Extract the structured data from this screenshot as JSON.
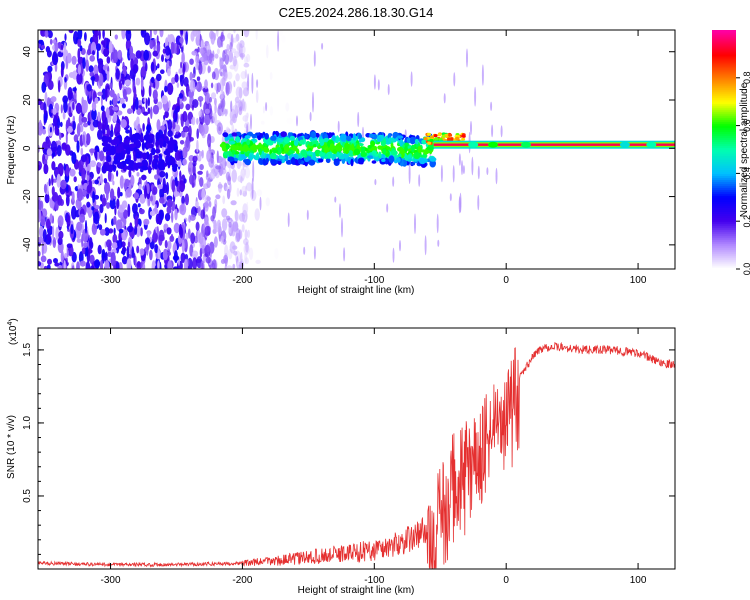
{
  "title": "C2E5.2024.286.18.30.G14",
  "colors": {
    "snr_line": "#e53030",
    "spectrogram_noise": "#6a1ee8",
    "axis": "#000000"
  },
  "chart_data": [
    {
      "type": "heatmap",
      "title": "C2E5.2024.286.18.30.G14",
      "xlabel": "Height of straight line (km)",
      "ylabel": "Frequency (Hz)",
      "xlim": [
        -355,
        128
      ],
      "ylim": [
        -50,
        49
      ],
      "x_ticks": [
        -300,
        -200,
        -100,
        0,
        100
      ],
      "y_ticks": [
        -40,
        -20,
        0,
        20,
        40
      ],
      "colorbar": {
        "label": "Normalized spectral amplitude",
        "range": [
          0,
          1
        ],
        "ticks": [
          0.0,
          0.2,
          0.4,
          0.6,
          0.8
        ],
        "colormap": [
          "#ffffff",
          "#b088ff",
          "#4400ee",
          "#0000ff",
          "#00c0ff",
          "#00ffb0",
          "#00ff00",
          "#ffff00",
          "#ff8000",
          "#ff0000",
          "#ff00a0"
        ]
      },
      "features": [
        {
          "name": "noise",
          "x_range": [
            -355,
            -195
          ],
          "freq_range": [
            -50,
            49
          ],
          "amplitude": 0.25
        },
        {
          "name": "signal-band",
          "x_range": [
            -215,
            -55
          ],
          "center_freq": 0,
          "half_width": 6,
          "amplitude": 0.5
        },
        {
          "name": "carrier",
          "x_range": [
            -55,
            128
          ],
          "center_freq": 1.5,
          "half_width": 2,
          "amplitude": 0.95
        }
      ]
    },
    {
      "type": "line",
      "xlabel": "Height of straight line (km)",
      "ylabel": "SNR (10 * v/v)",
      "multiplier_label": "(x10",
      "multiplier_exp": "4",
      "multiplier_close": ")",
      "xlim": [
        -355,
        128
      ],
      "ylim": [
        0,
        1.65
      ],
      "x_ticks": [
        -300,
        -200,
        -100,
        0,
        100
      ],
      "y_ticks": [
        0.5,
        1.0,
        1.5
      ],
      "x_tick_labels": [
        "-300",
        "-200",
        "-100",
        "0",
        "100"
      ],
      "y_tick_labels": [
        "0.5",
        "1.0",
        "1.5"
      ],
      "series": [
        {
          "x": [
            -355,
            -300,
            -250,
            -200,
            -170,
            -150,
            -130,
            -110,
            -100,
            -90,
            -80,
            -70,
            -60,
            -55,
            -50,
            -45,
            -40,
            -35,
            -30,
            -25,
            -20,
            -15,
            -10,
            -5,
            0,
            5,
            10,
            15,
            20,
            25,
            30,
            40,
            50,
            60,
            70,
            80,
            90,
            100,
            105,
            110,
            115,
            120,
            128
          ],
          "y": [
            0.04,
            0.03,
            0.03,
            0.04,
            0.06,
            0.08,
            0.1,
            0.12,
            0.13,
            0.15,
            0.18,
            0.22,
            0.28,
            0.35,
            0.45,
            0.55,
            0.7,
            0.72,
            0.8,
            0.85,
            0.9,
            1.0,
            1.1,
            1.15,
            1.2,
            1.25,
            1.3,
            1.38,
            1.45,
            1.5,
            1.52,
            1.52,
            1.51,
            1.5,
            1.5,
            1.5,
            1.49,
            1.48,
            1.46,
            1.44,
            1.42,
            1.41,
            1.4
          ]
        }
      ]
    }
  ]
}
